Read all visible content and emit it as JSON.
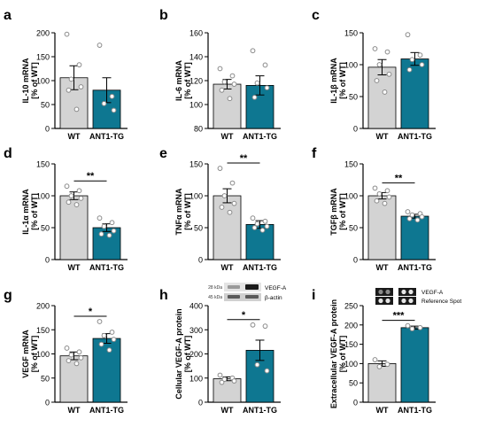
{
  "colors": {
    "wt": "#d3d3d3",
    "tg": "#0e7791",
    "axis": "#000000",
    "point": "#8a8a8a"
  },
  "chart_data": [
    {
      "id": "a",
      "type": "bar",
      "panel_letter": "a",
      "ylabel": [
        "IL-10 mRNA",
        "[% of WT]"
      ],
      "categories": [
        "WT",
        "ANT1-TG"
      ],
      "ylim": [
        0,
        200
      ],
      "yticks": [
        0,
        50,
        100,
        150,
        200
      ],
      "values": [
        106,
        80
      ],
      "errors": [
        25,
        26
      ],
      "points": [
        [
          197,
          133,
          103,
          87,
          80,
          40
        ],
        [
          174,
          67,
          52,
          38
        ]
      ],
      "significance": ""
    },
    {
      "id": "b",
      "type": "bar",
      "panel_letter": "b",
      "ylabel": [
        "IL-6 mRNA",
        "[% of WT]"
      ],
      "categories": [
        "WT",
        "ANT1-TG"
      ],
      "ylim": [
        80,
        160
      ],
      "yticks": [
        80,
        100,
        120,
        140,
        160
      ],
      "values": [
        117,
        116
      ],
      "errors": [
        4,
        8
      ],
      "points": [
        [
          130,
          124,
          119,
          117,
          112,
          105
        ],
        [
          145,
          133,
          118,
          114,
          106
        ]
      ],
      "significance": ""
    },
    {
      "id": "c",
      "type": "bar",
      "panel_letter": "c",
      "ylabel": [
        "IL-1β mRNA",
        "[% of WT]"
      ],
      "categories": [
        "WT",
        "ANT1-TG"
      ],
      "ylim": [
        0,
        150
      ],
      "yticks": [
        0,
        50,
        100,
        150
      ],
      "values": [
        96,
        109
      ],
      "errors": [
        12,
        10
      ],
      "points": [
        [
          125,
          120,
          100,
          85,
          75,
          57
        ],
        [
          147,
          115,
          108,
          100,
          92
        ]
      ],
      "significance": ""
    },
    {
      "id": "d",
      "type": "bar",
      "panel_letter": "d",
      "ylabel": [
        "IL-1α mRNA",
        "[% of WT]"
      ],
      "categories": [
        "WT",
        "ANT1-TG"
      ],
      "ylim": [
        0,
        150
      ],
      "yticks": [
        0,
        50,
        100,
        150
      ],
      "values": [
        100,
        50
      ],
      "errors": [
        6,
        6
      ],
      "points": [
        [
          115,
          108,
          100,
          96,
          90,
          86
        ],
        [
          65,
          58,
          52,
          45,
          40,
          38
        ]
      ],
      "significance": "**"
    },
    {
      "id": "e",
      "type": "bar",
      "panel_letter": "e",
      "ylabel": [
        "TNFα mRNA",
        "[% of WT]"
      ],
      "categories": [
        "WT",
        "ANT1-TG"
      ],
      "ylim": [
        0,
        150
      ],
      "yticks": [
        0,
        50,
        100,
        150
      ],
      "values": [
        100,
        55
      ],
      "errors": [
        11,
        6
      ],
      "points": [
        [
          143,
          120,
          100,
          88,
          82,
          74
        ],
        [
          65,
          60,
          56,
          52,
          50,
          46
        ]
      ],
      "significance": "**"
    },
    {
      "id": "f",
      "type": "bar",
      "panel_letter": "f",
      "ylabel": [
        "TGFβ mRNA",
        "[% of WT]"
      ],
      "categories": [
        "WT",
        "ANT1-TG"
      ],
      "ylim": [
        0,
        150
      ],
      "yticks": [
        0,
        50,
        100,
        150
      ],
      "values": [
        100,
        68
      ],
      "errors": [
        5,
        3
      ],
      "points": [
        [
          112,
          108,
          103,
          98,
          92,
          88
        ],
        [
          75,
          72,
          70,
          67,
          64,
          62
        ]
      ],
      "significance": "**"
    },
    {
      "id": "g",
      "type": "bar",
      "panel_letter": "g",
      "ylabel": [
        "VEGF mRNA",
        "[% of WT]"
      ],
      "categories": [
        "WT",
        "ANT1-TG"
      ],
      "ylim": [
        0,
        200
      ],
      "yticks": [
        0,
        50,
        100,
        150,
        200
      ],
      "values": [
        96,
        132
      ],
      "errors": [
        8,
        10
      ],
      "points": [
        [
          112,
          104,
          98,
          92,
          86,
          80
        ],
        [
          167,
          145,
          138,
          130,
          120,
          108
        ]
      ],
      "significance": "*"
    },
    {
      "id": "h",
      "type": "bar",
      "panel_letter": "h",
      "ylabel": [
        "Cellular VEGF-A protein",
        "[% of WT]"
      ],
      "categories": [
        "WT",
        "ANT1-TG"
      ],
      "ylim": [
        0,
        400
      ],
      "yticks": [
        0,
        100,
        200,
        300,
        400
      ],
      "values": [
        97,
        215
      ],
      "errors": [
        8,
        42
      ],
      "points": [
        [
          112,
          100,
          95,
          88,
          82
        ],
        [
          320,
          315,
          155,
          130
        ]
      ],
      "significance": "*",
      "blot": {
        "marker_top": "28 kDa",
        "marker_bottom": "45 kDa",
        "label_top": "VEGF-A",
        "label_bottom": "β-actin"
      }
    },
    {
      "id": "i",
      "type": "bar",
      "panel_letter": "i",
      "ylabel": [
        "Extracellular VEGF-A protein",
        "[% of WT]"
      ],
      "categories": [
        "WT",
        "ANT1-TG"
      ],
      "ylim": [
        0,
        250
      ],
      "yticks": [
        0,
        50,
        100,
        150,
        200,
        250
      ],
      "values": [
        100,
        193
      ],
      "errors": [
        7,
        4
      ],
      "points": [
        [
          110,
          98,
          92
        ],
        [
          198,
          193,
          190
        ]
      ],
      "significance": "***",
      "array": {
        "label_top": "VEGF-A",
        "label_bottom": "Reference Spot"
      }
    }
  ]
}
